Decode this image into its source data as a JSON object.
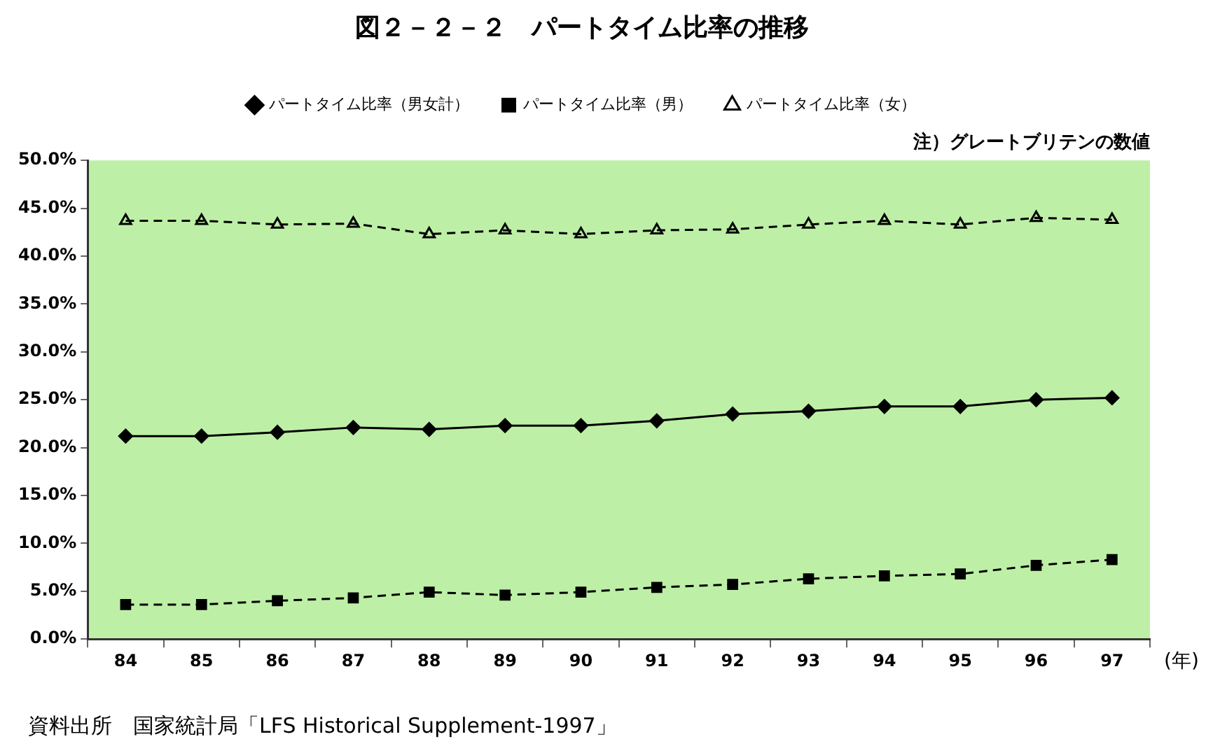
{
  "chart_data": {
    "type": "line",
    "title": "図２－２－２　パートタイム比率の推移",
    "xlabel": "(年)",
    "categories": [
      "84",
      "85",
      "86",
      "87",
      "88",
      "89",
      "90",
      "91",
      "92",
      "93",
      "94",
      "95",
      "96",
      "97"
    ],
    "series": [
      {
        "name": "パートタイム比率（男女計）",
        "color": "#000000",
        "marker": "diamond",
        "line_style": "solid",
        "values": [
          21.2,
          21.2,
          21.6,
          22.1,
          21.9,
          22.3,
          22.3,
          22.8,
          23.5,
          23.8,
          24.3,
          24.3,
          25.0,
          25.2
        ]
      },
      {
        "name": "パートタイム比率（男）",
        "color": "#000000",
        "marker": "square",
        "line_style": "dashed",
        "values": [
          3.6,
          3.6,
          4.0,
          4.3,
          4.9,
          4.6,
          4.9,
          5.4,
          5.7,
          6.3,
          6.6,
          6.8,
          7.7,
          8.3
        ]
      },
      {
        "name": "パートタイム比率（女）",
        "color": "#000000",
        "marker": "triangle",
        "line_style": "dashed",
        "values": [
          43.7,
          43.7,
          43.3,
          43.4,
          42.3,
          42.7,
          42.3,
          42.7,
          42.8,
          43.3,
          43.7,
          43.3,
          44.0,
          43.8
        ]
      }
    ],
    "ylim": [
      0,
      50
    ],
    "yticks": [
      {
        "value": 0,
        "label": "0.0%"
      },
      {
        "value": 5,
        "label": "5.0%"
      },
      {
        "value": 10,
        "label": "10.0%"
      },
      {
        "value": 15,
        "label": "15.0%"
      },
      {
        "value": 20,
        "label": "20.0%"
      },
      {
        "value": 25,
        "label": "25.0%"
      },
      {
        "value": 30,
        "label": "30.0%"
      },
      {
        "value": 35,
        "label": "35.0%"
      },
      {
        "value": 40,
        "label": "40.0%"
      },
      {
        "value": 45,
        "label": "45.0%"
      },
      {
        "value": 50,
        "label": "50.0%"
      }
    ],
    "grid": false,
    "legend": "top",
    "annotations": [
      "注）グレートブリテンの数値",
      "資料出所　国家統計局「LFS Historical Supplement-1997」"
    ]
  }
}
